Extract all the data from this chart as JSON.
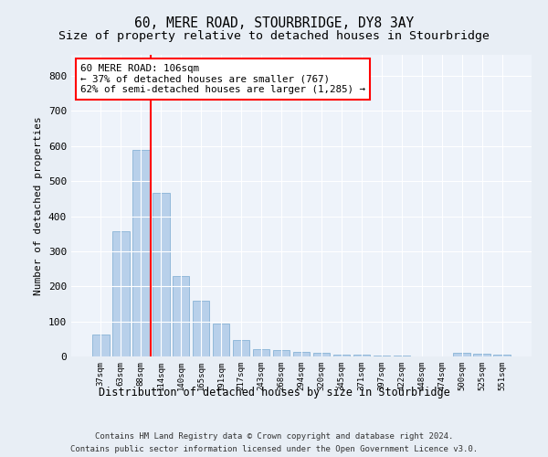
{
  "title": "60, MERE ROAD, STOURBRIDGE, DY8 3AY",
  "subtitle": "Size of property relative to detached houses in Stourbridge",
  "xlabel": "Distribution of detached houses by size in Stourbridge",
  "ylabel": "Number of detached properties",
  "categories": [
    "37sqm",
    "63sqm",
    "88sqm",
    "114sqm",
    "140sqm",
    "165sqm",
    "191sqm",
    "217sqm",
    "243sqm",
    "268sqm",
    "294sqm",
    "320sqm",
    "345sqm",
    "371sqm",
    "397sqm",
    "422sqm",
    "448sqm",
    "474sqm",
    "500sqm",
    "525sqm",
    "551sqm"
  ],
  "values": [
    62,
    357,
    588,
    467,
    230,
    159,
    95,
    48,
    22,
    18,
    14,
    10,
    5,
    4,
    3,
    2,
    1,
    0,
    10,
    9,
    5
  ],
  "bar_color": "#b8d0ea",
  "bar_edge_color": "#7aaad0",
  "vline_x": 2.5,
  "vline_color": "red",
  "annotation_text": "60 MERE ROAD: 106sqm\n← 37% of detached houses are smaller (767)\n62% of semi-detached houses are larger (1,285) →",
  "annotation_box_color": "white",
  "annotation_box_edge": "red",
  "ylim": [
    0,
    860
  ],
  "yticks": [
    0,
    100,
    200,
    300,
    400,
    500,
    600,
    700,
    800
  ],
  "footer1": "Contains HM Land Registry data © Crown copyright and database right 2024.",
  "footer2": "Contains public sector information licensed under the Open Government Licence v3.0.",
  "bg_color": "#e8eef5",
  "plot_bg_color": "#eef3fa",
  "title_fontsize": 10.5,
  "subtitle_fontsize": 9.5
}
